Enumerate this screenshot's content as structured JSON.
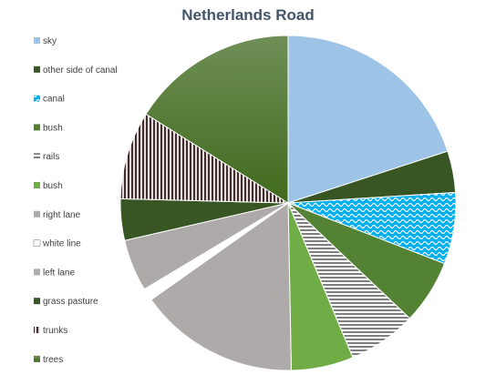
{
  "chart_data": {
    "type": "pie",
    "title": "Netherlands Road",
    "legend_position": "left",
    "slices": [
      {
        "label": "sky",
        "value": 20.0,
        "color": "#9dc3e6",
        "pattern": "solid"
      },
      {
        "label": "other side of canal",
        "value": 4.0,
        "color": "#375623",
        "pattern": "solid"
      },
      {
        "label": "canal",
        "value": 6.9,
        "color": "#00b0f0",
        "pattern": "waves"
      },
      {
        "label": "bush",
        "value": 6.2,
        "color": "#548235",
        "pattern": "solid"
      },
      {
        "label": "rails",
        "value": 6.6,
        "color": "#7f7f7f",
        "pattern": "hstripes"
      },
      {
        "label": "bush",
        "value": 6.0,
        "color": "#70ad47",
        "pattern": "solid"
      },
      {
        "label": "right lane",
        "value": 15.5,
        "color": "#aeaaaa",
        "pattern": "solid"
      },
      {
        "label": "white line",
        "value": 1.2,
        "color": "#ffffff",
        "pattern": "solid"
      },
      {
        "label": "left lane",
        "value": 5.0,
        "color": "#aeaaaa",
        "pattern": "solid"
      },
      {
        "label": "grass pasture",
        "value": 4.0,
        "color": "#375623",
        "pattern": "solid"
      },
      {
        "label": "trunks",
        "value": 8.5,
        "color": "#3b2f2f",
        "pattern": "vstripes"
      },
      {
        "label": "trees",
        "value": 16.1,
        "color": "#4f7a2b",
        "pattern": "gradient"
      }
    ]
  }
}
